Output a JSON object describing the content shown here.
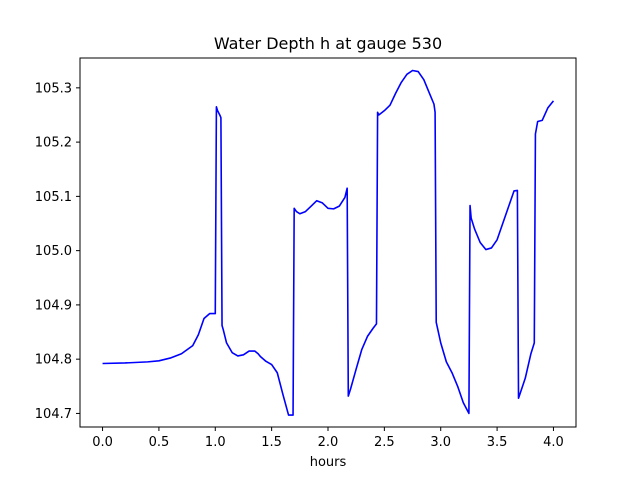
{
  "chart_data": {
    "type": "line",
    "title": "Water Depth h at gauge 530",
    "xlabel": "hours",
    "ylabel": "",
    "xlim": [
      -0.2,
      4.2
    ],
    "ylim": [
      104.675,
      105.355
    ],
    "xticks": [
      0.0,
      0.5,
      1.0,
      1.5,
      2.0,
      2.5,
      3.0,
      3.5,
      4.0
    ],
    "xtick_labels": [
      "0.0",
      "0.5",
      "1.0",
      "1.5",
      "2.0",
      "2.5",
      "3.0",
      "3.5",
      "4.0"
    ],
    "yticks": [
      104.7,
      104.8,
      104.9,
      105.0,
      105.1,
      105.2,
      105.3
    ],
    "ytick_labels": [
      "104.7",
      "104.8",
      "104.9",
      "105.0",
      "105.1",
      "105.2",
      "105.3"
    ],
    "grid": false,
    "series": [
      {
        "color": "#0000ff",
        "x": [
          0.0,
          0.2,
          0.4,
          0.5,
          0.6,
          0.7,
          0.8,
          0.85,
          0.9,
          0.95,
          0.98,
          1.0,
          1.01,
          1.02,
          1.04,
          1.05,
          1.06,
          1.07,
          1.1,
          1.15,
          1.2,
          1.25,
          1.3,
          1.35,
          1.38,
          1.4,
          1.45,
          1.5,
          1.55,
          1.6,
          1.65,
          1.69,
          1.7,
          1.72,
          1.75,
          1.8,
          1.85,
          1.9,
          1.95,
          2.0,
          2.05,
          2.1,
          2.15,
          2.17,
          2.18,
          2.2,
          2.25,
          2.3,
          2.35,
          2.4,
          2.43,
          2.44,
          2.45,
          2.5,
          2.55,
          2.6,
          2.65,
          2.7,
          2.75,
          2.8,
          2.85,
          2.9,
          2.94,
          2.95,
          2.96,
          3.0,
          3.05,
          3.1,
          3.15,
          3.2,
          3.25,
          3.26,
          3.27,
          3.3,
          3.35,
          3.4,
          3.45,
          3.5,
          3.55,
          3.6,
          3.65,
          3.68,
          3.69,
          3.75,
          3.8,
          3.83,
          3.84,
          3.86,
          3.9,
          3.95,
          4.0
        ],
        "y": [
          104.792,
          104.793,
          104.795,
          104.797,
          104.802,
          104.81,
          104.825,
          104.845,
          104.875,
          104.884,
          104.884,
          104.884,
          105.265,
          105.258,
          105.25,
          105.245,
          104.862,
          104.855,
          104.83,
          104.812,
          104.806,
          104.808,
          104.815,
          104.815,
          104.81,
          104.805,
          104.796,
          104.79,
          104.775,
          104.735,
          104.697,
          104.697,
          105.078,
          105.072,
          105.068,
          105.072,
          105.082,
          105.092,
          105.088,
          105.078,
          105.077,
          105.082,
          105.098,
          105.115,
          104.732,
          104.745,
          104.782,
          104.818,
          104.842,
          104.857,
          104.865,
          105.255,
          105.25,
          105.258,
          105.268,
          105.29,
          105.31,
          105.325,
          105.332,
          105.33,
          105.315,
          105.29,
          105.27,
          105.255,
          104.868,
          104.83,
          104.795,
          104.775,
          104.75,
          104.72,
          104.7,
          105.083,
          105.06,
          105.04,
          105.015,
          105.002,
          105.005,
          105.02,
          105.05,
          105.08,
          105.11,
          105.111,
          104.728,
          104.765,
          104.81,
          104.83,
          105.215,
          105.238,
          105.24,
          105.263,
          105.276
        ]
      }
    ]
  }
}
